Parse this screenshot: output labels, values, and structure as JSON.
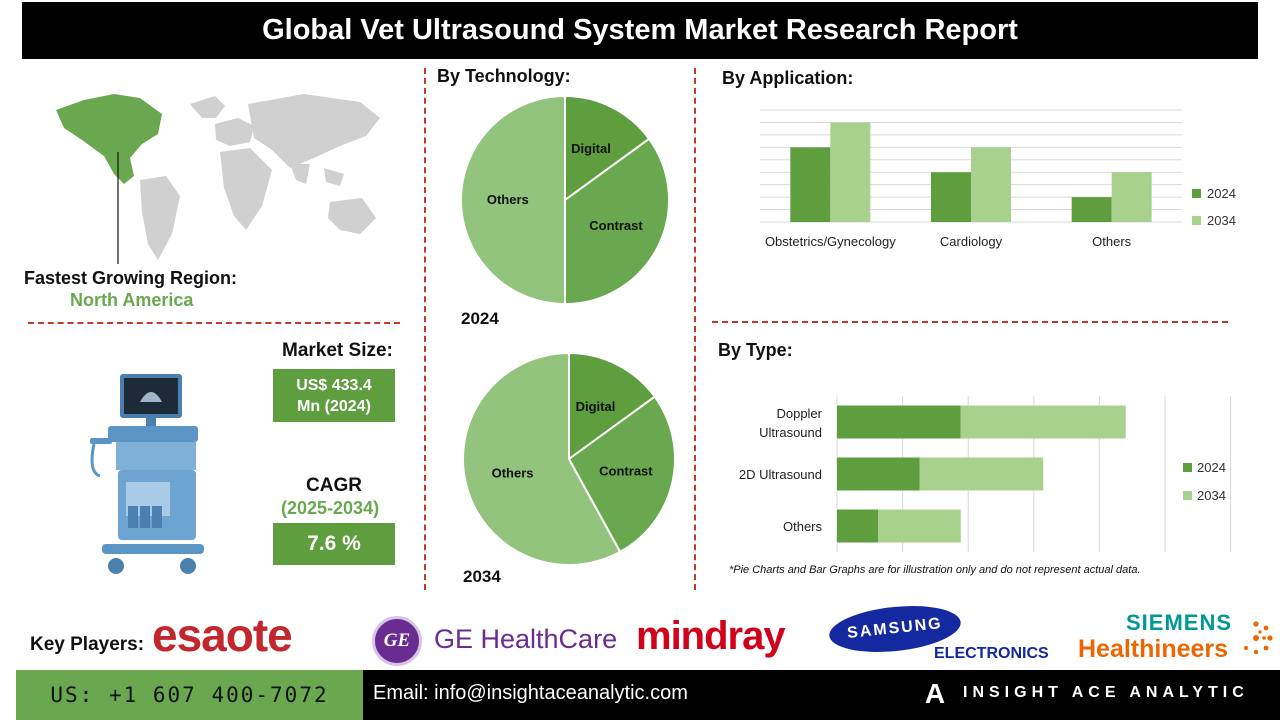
{
  "header": {
    "title": "Global Vet Ultrasound System Market Research Report"
  },
  "region": {
    "label": "Fastest Growing Region:",
    "value": "North America"
  },
  "market_size": {
    "label": "Market Size:",
    "value_line1": "US$ 433.4",
    "value_line2": "Mn (2024)"
  },
  "cagr": {
    "label": "CAGR",
    "period": "(2025-2034)",
    "value": "7.6 %"
  },
  "sections": {
    "technology": "By Technology:",
    "application": "By  Application:",
    "type": "By Type:"
  },
  "note": "*Pie Charts and Bar Graphs are for illustration only and do not represent actual data.",
  "key_players": {
    "label": "Key Players:",
    "esaote": "esaote",
    "ge": "GE HealthCare",
    "ge_mark": "GE",
    "mindray": "mindray",
    "samsung_top": "SAMSUNG",
    "samsung_bottom": "ELECTRONICS",
    "siemens_top": "SIEMENS",
    "siemens_bottom": "Healthineers"
  },
  "footer": {
    "phone": "US: +1 607 400-7072",
    "email": "Email: info@insightaceanalytic.com",
    "brand": "INSIGHT ACE ANALYTIC",
    "brand_mark": "A"
  },
  "colors": {
    "dark_green": "#5f9e3f",
    "mid_green": "#6aa84f",
    "light_green": "#93c47d",
    "pale_green": "#a9d18e"
  },
  "chart_data": [
    {
      "type": "pie",
      "title": "2024",
      "labels": [
        "Digital",
        "Contrast",
        "Others"
      ],
      "values": [
        15,
        35,
        50
      ],
      "colors": [
        "#5f9e3f",
        "#6aa84f",
        "#93c47d"
      ]
    },
    {
      "type": "pie",
      "title": "2034",
      "labels": [
        "Digital",
        "Contrast",
        "Others"
      ],
      "values": [
        15,
        27,
        58
      ],
      "colors": [
        "#5f9e3f",
        "#6aa84f",
        "#93c47d"
      ]
    },
    {
      "type": "bar",
      "categories": [
        "Obstetrics/Gynecology",
        "Cardiology",
        "Others"
      ],
      "series": [
        {
          "name": "2024",
          "values": [
            3,
            2,
            1
          ],
          "color": "#5f9e3f"
        },
        {
          "name": "2034",
          "values": [
            4,
            3,
            2
          ],
          "color": "#a9d18e"
        }
      ],
      "ylim": [
        0,
        4.5
      ],
      "grid": true,
      "legend": "right"
    },
    {
      "type": "bar",
      "orientation": "horizontal",
      "stacked": true,
      "categories": [
        "Doppler\nUltrasound",
        "2D Ultrasound",
        "Others"
      ],
      "series": [
        {
          "name": "2024",
          "values": [
            3,
            2,
            1
          ],
          "color": "#5f9e3f"
        },
        {
          "name": "2034",
          "values": [
            4,
            3,
            2
          ],
          "color": "#a9d18e"
        }
      ],
      "xlim": [
        0,
        8
      ],
      "grid": true,
      "legend": "right"
    }
  ]
}
